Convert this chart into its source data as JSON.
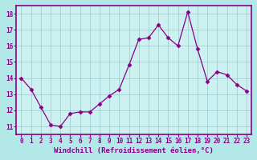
{
  "x": [
    0,
    1,
    2,
    3,
    4,
    5,
    6,
    7,
    8,
    9,
    10,
    11,
    12,
    13,
    14,
    15,
    16,
    17,
    18,
    19,
    20,
    21,
    22,
    23
  ],
  "y": [
    14.0,
    13.3,
    12.2,
    11.1,
    11.0,
    11.8,
    11.9,
    11.9,
    12.4,
    12.9,
    13.3,
    14.8,
    16.4,
    16.5,
    17.3,
    16.5,
    16.0,
    18.1,
    15.8,
    13.8,
    14.4,
    14.2,
    13.6,
    13.2
  ],
  "line_color": "#880088",
  "marker": "D",
  "marker_size": 2.5,
  "bg_color": "#b3e8e8",
  "plot_bg_color": "#cdf0f0",
  "grid_color": "#99cccc",
  "xlabel": "Windchill (Refroidissement éolien,°C)",
  "ylabel": "",
  "ylim": [
    10.5,
    18.5
  ],
  "xlim": [
    -0.5,
    23.5
  ],
  "yticks": [
    11,
    12,
    13,
    14,
    15,
    16,
    17,
    18
  ],
  "xticks": [
    0,
    1,
    2,
    3,
    4,
    5,
    6,
    7,
    8,
    9,
    10,
    11,
    12,
    13,
    14,
    15,
    16,
    17,
    18,
    19,
    20,
    21,
    22,
    23
  ],
  "tick_fontsize": 5.5,
  "label_fontsize": 6.5,
  "border_color": "#880088"
}
